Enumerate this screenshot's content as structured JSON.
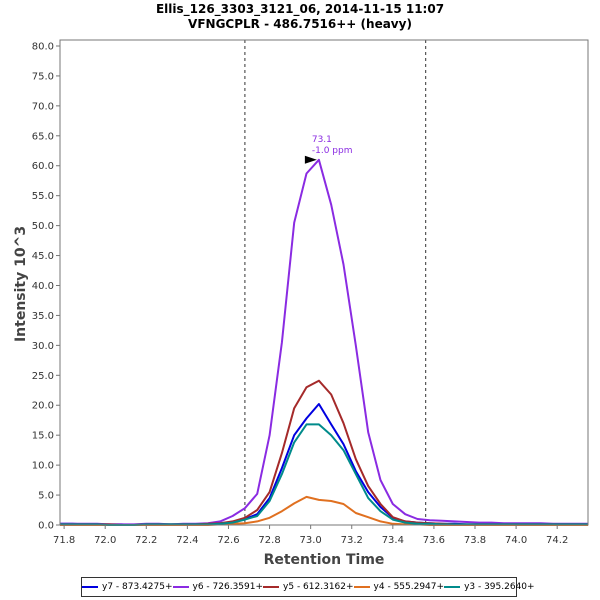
{
  "chart_data": {
    "type": "line",
    "title": "Ellis_126_3303_3121_06, 2014-11-15 11:07",
    "subtitle": "VFNGCPLR - 486.7516++ (heavy)",
    "xlabel": "Retention Time",
    "ylabel": "Intensity 10^3",
    "xlim": [
      71.78,
      74.35
    ],
    "ylim": [
      0,
      81
    ],
    "x_ticks": [
      "71.8",
      "72.0",
      "72.2",
      "72.4",
      "72.6",
      "72.8",
      "73.0",
      "73.2",
      "73.4",
      "73.6",
      "73.8",
      "74.0",
      "74.2"
    ],
    "y_ticks": [
      "0.0",
      "5.0",
      "10.0",
      "15.0",
      "20.0",
      "25.0",
      "30.0",
      "35.0",
      "40.0",
      "45.0",
      "50.0",
      "55.0",
      "60.0",
      "65.0",
      "70.0",
      "75.0",
      "80.0"
    ],
    "boundaries": [
      72.68,
      73.56
    ],
    "peak_annotation": {
      "x": 73.04,
      "y": 61.0,
      "rt_label": "73.1",
      "ppm_label": "-1.0 ppm",
      "color": "#8a2be2"
    },
    "x": [
      71.78,
      71.84,
      71.9,
      71.96,
      72.02,
      72.08,
      72.14,
      72.2,
      72.26,
      72.32,
      72.38,
      72.44,
      72.5,
      72.56,
      72.62,
      72.68,
      72.74,
      72.8,
      72.86,
      72.92,
      72.98,
      73.04,
      73.1,
      73.16,
      73.22,
      73.28,
      73.34,
      73.4,
      73.46,
      73.52,
      73.58,
      73.64,
      73.7,
      73.76,
      73.82,
      73.88,
      73.94,
      74.0,
      74.06,
      74.12,
      74.18,
      74.24,
      74.3,
      74.35
    ],
    "series": [
      {
        "name": "y7 - 873.4275+",
        "color": "#0000e0",
        "values": [
          0.2,
          0.2,
          0.1,
          0.1,
          0.1,
          0.1,
          0.0,
          0.1,
          0.1,
          0.1,
          0.1,
          0.1,
          0.2,
          0.3,
          0.5,
          1.0,
          1.8,
          4.5,
          9.5,
          15.0,
          17.8,
          20.2,
          16.8,
          13.5,
          9.0,
          5.5,
          3.0,
          1.2,
          0.6,
          0.4,
          0.3,
          0.2,
          0.2,
          0.1,
          0.1,
          0.1,
          0.1,
          0.1,
          0.1,
          0.1,
          0.1,
          0.1,
          0.1,
          0.1
        ]
      },
      {
        "name": "y6 - 726.3591+",
        "color": "#8a2be2",
        "values": [
          0.2,
          0.2,
          0.2,
          0.2,
          0.1,
          0.1,
          0.1,
          0.2,
          0.2,
          0.1,
          0.2,
          0.2,
          0.3,
          0.6,
          1.5,
          2.8,
          5.2,
          15.0,
          30.5,
          50.5,
          58.7,
          61.0,
          53.5,
          43.5,
          30.0,
          15.5,
          7.5,
          3.5,
          1.8,
          1.0,
          0.8,
          0.7,
          0.6,
          0.5,
          0.4,
          0.4,
          0.3,
          0.3,
          0.3,
          0.3,
          0.2,
          0.2,
          0.2,
          0.2
        ]
      },
      {
        "name": "y5 - 612.3162+",
        "color": "#a52a2a",
        "values": [
          0.1,
          0.1,
          0.1,
          0.1,
          0.1,
          0.0,
          0.0,
          0.1,
          0.1,
          0.1,
          0.1,
          0.1,
          0.2,
          0.3,
          0.6,
          1.2,
          2.5,
          5.5,
          12.0,
          19.5,
          23.0,
          24.1,
          21.8,
          17.0,
          11.0,
          6.5,
          3.5,
          1.3,
          0.6,
          0.4,
          0.3,
          0.2,
          0.1,
          0.1,
          0.1,
          0.1,
          0.1,
          0.1,
          0.1,
          0.1,
          0.1,
          0.1,
          0.1,
          0.1
        ]
      },
      {
        "name": "y4 - 555.2947+",
        "color": "#e07020",
        "values": [
          0.0,
          0.0,
          0.0,
          0.0,
          0.0,
          0.0,
          0.0,
          0.0,
          0.0,
          0.0,
          0.0,
          0.0,
          0.0,
          0.1,
          0.2,
          0.3,
          0.6,
          1.2,
          2.3,
          3.6,
          4.7,
          4.2,
          4.0,
          3.5,
          2.0,
          1.3,
          0.6,
          0.2,
          0.1,
          0.1,
          0.0,
          0.0,
          0.0,
          0.0,
          0.0,
          0.0,
          0.0,
          0.0,
          0.0,
          0.0,
          0.0,
          0.0,
          0.0,
          0.0
        ]
      },
      {
        "name": "y3 - 395.2640+",
        "color": "#008b8b",
        "values": [
          0.1,
          0.1,
          0.1,
          0.1,
          0.0,
          0.0,
          0.0,
          0.1,
          0.1,
          0.1,
          0.1,
          0.1,
          0.1,
          0.2,
          0.4,
          0.9,
          1.5,
          4.0,
          8.5,
          13.8,
          16.8,
          16.8,
          15.0,
          12.5,
          8.5,
          4.5,
          2.3,
          0.9,
          0.4,
          0.2,
          0.2,
          0.1,
          0.1,
          0.1,
          0.1,
          0.1,
          0.1,
          0.1,
          0.1,
          0.1,
          0.1,
          0.1,
          0.1,
          0.1
        ]
      }
    ]
  }
}
